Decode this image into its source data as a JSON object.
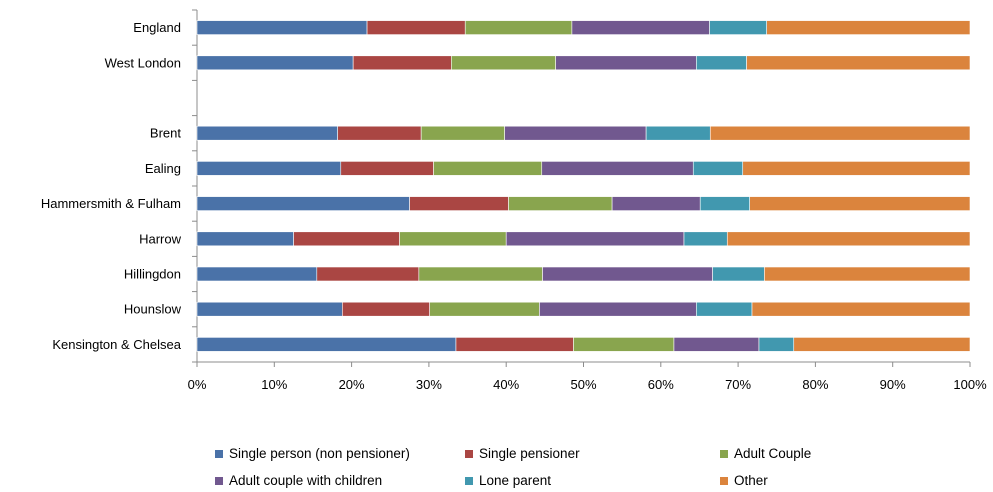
{
  "chart_data": {
    "type": "bar",
    "orientation": "horizontal",
    "stacked": "percent",
    "categories": [
      "England",
      "West London",
      "",
      "Brent",
      "Ealing",
      "Hammersmith & Fulham",
      "Harrow",
      "Hillingdon",
      "Hounslow",
      "Kensington & Chelsea"
    ],
    "series": [
      {
        "name": "Single person (non pensioner)",
        "color": "#4a72a8",
        "values": [
          22,
          20.2,
          null,
          18.2,
          18.6,
          27.5,
          12.5,
          15.5,
          18.8,
          33.5
        ]
      },
      {
        "name": "Single pensioner",
        "color": "#aa4643",
        "values": [
          12.7,
          12.7,
          null,
          10.8,
          12.0,
          12.8,
          13.7,
          13.2,
          11.3,
          15.2
        ]
      },
      {
        "name": "Adult Couple",
        "color": "#89a54e",
        "values": [
          13.8,
          13.5,
          null,
          10.8,
          14.0,
          13.4,
          13.8,
          16.0,
          14.2,
          13.0
        ]
      },
      {
        "name": "Adult couple with children",
        "color": "#71588f",
        "values": [
          17.8,
          18.2,
          null,
          18.3,
          19.6,
          11.4,
          23.0,
          22.0,
          20.3,
          11.0
        ]
      },
      {
        "name": "Lone parent",
        "color": "#4198af",
        "values": [
          7.4,
          6.5,
          null,
          8.3,
          6.4,
          6.4,
          5.6,
          6.7,
          7.2,
          4.5
        ]
      },
      {
        "name": "Other",
        "color": "#db843d",
        "values": [
          26.3,
          28.9,
          null,
          33.6,
          29.4,
          28.5,
          31.4,
          26.6,
          28.2,
          22.8
        ]
      }
    ],
    "xaxis": {
      "ticks": [
        "0%",
        "10%",
        "20%",
        "30%",
        "40%",
        "50%",
        "60%",
        "70%",
        "80%",
        "90%",
        "100%"
      ],
      "range": [
        0,
        100
      ]
    },
    "grid": false,
    "legend_position": "bottom"
  }
}
